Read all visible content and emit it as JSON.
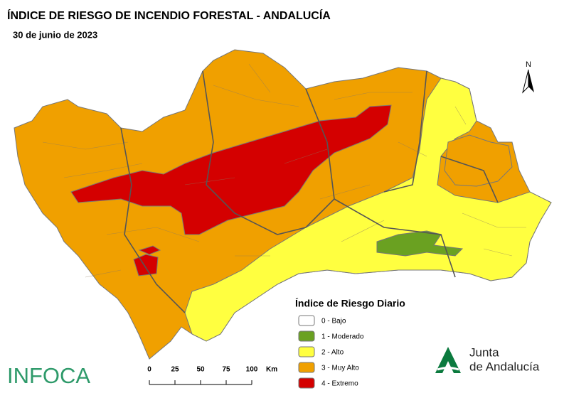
{
  "title": "ÍNDICE DE RIESGO DE INCENDIO FORESTAL - ANDALUCÍA",
  "date": "30 de junio de 2023",
  "north": "N",
  "legend": {
    "title": "Índice de Riesgo Diario",
    "items": [
      {
        "label": "0 - Bajo",
        "color": "#ffffff"
      },
      {
        "label": "1 - Moderado",
        "color": "#6aa121"
      },
      {
        "label": "2 - Alto",
        "color": "#ffff40"
      },
      {
        "label": "3 - Muy Alto",
        "color": "#f0a000"
      },
      {
        "label": "4 - Extremo",
        "color": "#d40000"
      }
    ]
  },
  "scale": {
    "ticks": [
      0,
      25,
      50,
      75,
      100
    ],
    "unit": "Km"
  },
  "logos": {
    "left": "INFOCA",
    "right": [
      "Junta",
      "de Andalucía"
    ]
  }
}
